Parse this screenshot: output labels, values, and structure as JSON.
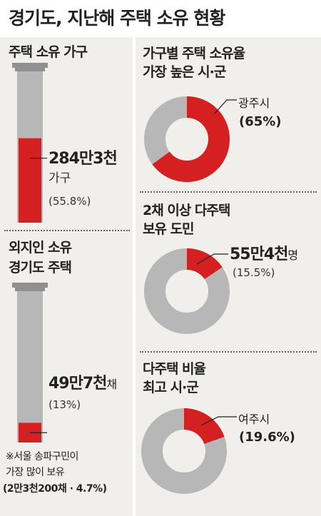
{
  "title": "경기도, 지난해 주택 소유 현황",
  "colors": {
    "red": "#d42020",
    "gray": "#b7b7b7",
    "dark_gray": "#909090",
    "panel": "#f0efec"
  },
  "chart_data": [
    {
      "type": "bar",
      "title": "주택 소유 가구",
      "values": [
        55.8
      ],
      "big_value": "284만3천",
      "unit": "가구",
      "pct_label": "(55.8%)"
    },
    {
      "type": "bar",
      "title_line1": "외지인 소유",
      "title_line2": "경기도 주택",
      "values": [
        13
      ],
      "big_value": "49만7천",
      "unit": "채",
      "pct_label": "(13%)",
      "note": [
        "※서울 송파구민이",
        "가장 많이 보유",
        "(2만3천200채 · 4.7%)"
      ]
    },
    {
      "type": "pie",
      "title_line1": "가구별 주택 소유율",
      "title_line2": "가장 높은 시·군",
      "values": [
        65
      ],
      "label": "광주시",
      "pct_label": "(65%)"
    },
    {
      "type": "pie",
      "title_line1": "2채 이상 다주택",
      "title_line2": "보유 도민",
      "values": [
        15.5
      ],
      "big_value": "55만4천",
      "unit": "명",
      "pct_label": "(15.5%)"
    },
    {
      "type": "pie",
      "title_line1": "다주택 비율",
      "title_line2": "최고 시·군",
      "values": [
        19.6
      ],
      "label": "여주시",
      "pct_label": "(19.6%)"
    }
  ]
}
